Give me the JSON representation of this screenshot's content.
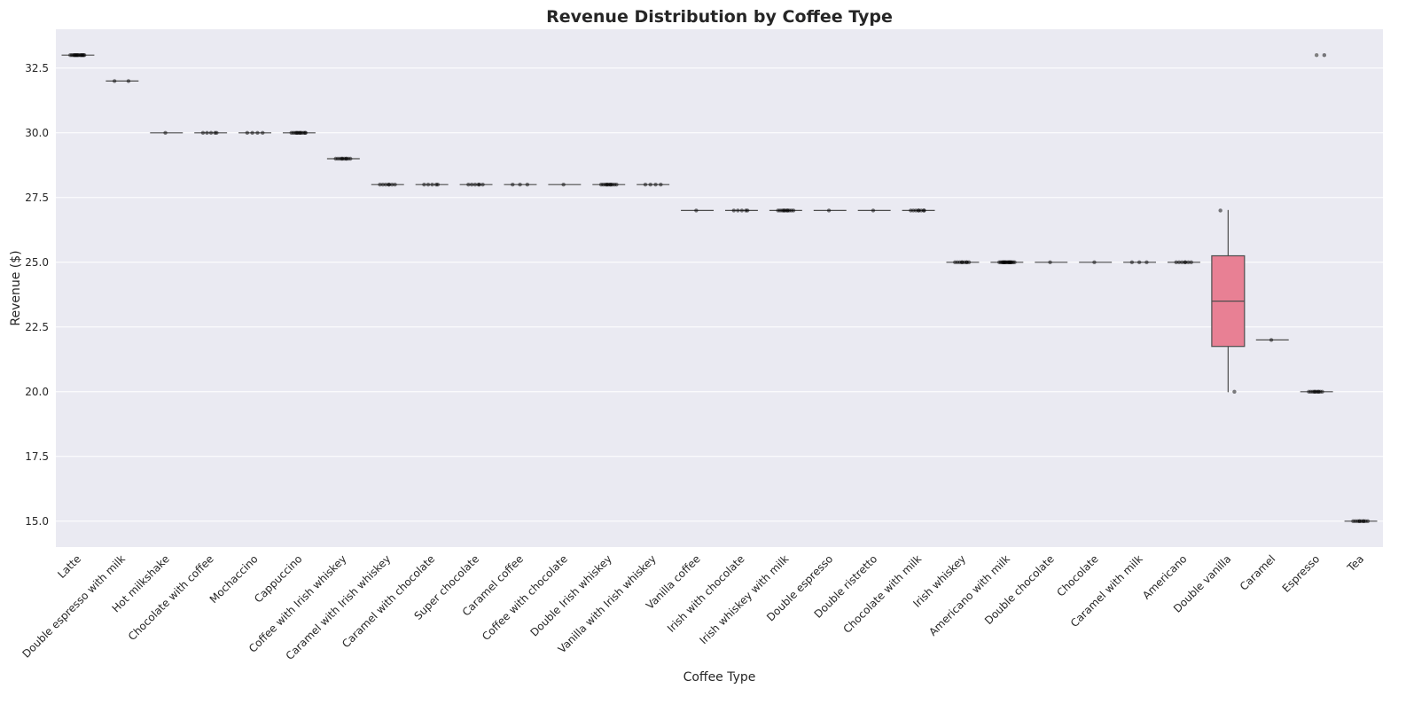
{
  "chart_data": {
    "type": "box",
    "title": "Revenue Distribution by Coffee Type",
    "xlabel": "Coffee Type",
    "ylabel": "Revenue ($)",
    "ylim": [
      14.0,
      34.0
    ],
    "yticks": [
      15.0,
      17.5,
      20.0,
      22.5,
      25.0,
      27.5,
      30.0,
      32.5
    ],
    "ytick_labels": [
      "15.0",
      "17.5",
      "20.0",
      "22.5",
      "25.0",
      "27.5",
      "30.0",
      "32.5"
    ],
    "grid": true,
    "colors": {
      "background": "#eaeaf2",
      "grid": "#ffffff",
      "box_fill": "#e88094",
      "box_edge": "#4d4d4d",
      "points": "#000000",
      "outlier": "#7f7f7f"
    },
    "categories": [
      "Latte",
      "Double espresso with milk",
      "Hot milkshake",
      "Chocolate with coffee",
      "Mochaccino",
      "Cappuccino",
      "Coffee with Irish whiskey",
      "Caramel with Irish whiskey",
      "Caramel with chocolate",
      "Super chocolate",
      "Caramel coffee",
      "Coffee with chocolate",
      "Double Irish whiskey",
      "Vanilla with Irish whiskey",
      "Vanilla coffee",
      "Irish with chocolate",
      "Irish whiskey with milk",
      "Double espresso",
      "Double ristretto",
      "Chocolate with milk",
      "Irish whiskey",
      "Americano with milk",
      "Double chocolate",
      "Chocolate",
      "Caramel with milk",
      "Americano",
      "Double vanilla",
      "Caramel",
      "Espresso",
      "Tea"
    ],
    "boxes": [
      {
        "min": 33.0,
        "q1": 33.0,
        "median": 33.0,
        "q3": 33.0,
        "max": 33.0,
        "outliers": []
      },
      {
        "min": 32.0,
        "q1": 32.0,
        "median": 32.0,
        "q3": 32.0,
        "max": 32.0,
        "outliers": []
      },
      {
        "min": 30.0,
        "q1": 30.0,
        "median": 30.0,
        "q3": 30.0,
        "max": 30.0,
        "outliers": []
      },
      {
        "min": 30.0,
        "q1": 30.0,
        "median": 30.0,
        "q3": 30.0,
        "max": 30.0,
        "outliers": []
      },
      {
        "min": 30.0,
        "q1": 30.0,
        "median": 30.0,
        "q3": 30.0,
        "max": 30.0,
        "outliers": []
      },
      {
        "min": 30.0,
        "q1": 30.0,
        "median": 30.0,
        "q3": 30.0,
        "max": 30.0,
        "outliers": []
      },
      {
        "min": 29.0,
        "q1": 29.0,
        "median": 29.0,
        "q3": 29.0,
        "max": 29.0,
        "outliers": []
      },
      {
        "min": 28.0,
        "q1": 28.0,
        "median": 28.0,
        "q3": 28.0,
        "max": 28.0,
        "outliers": []
      },
      {
        "min": 28.0,
        "q1": 28.0,
        "median": 28.0,
        "q3": 28.0,
        "max": 28.0,
        "outliers": []
      },
      {
        "min": 28.0,
        "q1": 28.0,
        "median": 28.0,
        "q3": 28.0,
        "max": 28.0,
        "outliers": []
      },
      {
        "min": 28.0,
        "q1": 28.0,
        "median": 28.0,
        "q3": 28.0,
        "max": 28.0,
        "outliers": []
      },
      {
        "min": 28.0,
        "q1": 28.0,
        "median": 28.0,
        "q3": 28.0,
        "max": 28.0,
        "outliers": []
      },
      {
        "min": 28.0,
        "q1": 28.0,
        "median": 28.0,
        "q3": 28.0,
        "max": 28.0,
        "outliers": []
      },
      {
        "min": 28.0,
        "q1": 28.0,
        "median": 28.0,
        "q3": 28.0,
        "max": 28.0,
        "outliers": []
      },
      {
        "min": 27.0,
        "q1": 27.0,
        "median": 27.0,
        "q3": 27.0,
        "max": 27.0,
        "outliers": []
      },
      {
        "min": 27.0,
        "q1": 27.0,
        "median": 27.0,
        "q3": 27.0,
        "max": 27.0,
        "outliers": []
      },
      {
        "min": 27.0,
        "q1": 27.0,
        "median": 27.0,
        "q3": 27.0,
        "max": 27.0,
        "outliers": []
      },
      {
        "min": 27.0,
        "q1": 27.0,
        "median": 27.0,
        "q3": 27.0,
        "max": 27.0,
        "outliers": []
      },
      {
        "min": 27.0,
        "q1": 27.0,
        "median": 27.0,
        "q3": 27.0,
        "max": 27.0,
        "outliers": []
      },
      {
        "min": 27.0,
        "q1": 27.0,
        "median": 27.0,
        "q3": 27.0,
        "max": 27.0,
        "outliers": []
      },
      {
        "min": 25.0,
        "q1": 25.0,
        "median": 25.0,
        "q3": 25.0,
        "max": 25.0,
        "outliers": []
      },
      {
        "min": 25.0,
        "q1": 25.0,
        "median": 25.0,
        "q3": 25.0,
        "max": 25.0,
        "outliers": []
      },
      {
        "min": 25.0,
        "q1": 25.0,
        "median": 25.0,
        "q3": 25.0,
        "max": 25.0,
        "outliers": []
      },
      {
        "min": 25.0,
        "q1": 25.0,
        "median": 25.0,
        "q3": 25.0,
        "max": 25.0,
        "outliers": []
      },
      {
        "min": 25.0,
        "q1": 25.0,
        "median": 25.0,
        "q3": 25.0,
        "max": 25.0,
        "outliers": []
      },
      {
        "min": 25.0,
        "q1": 25.0,
        "median": 25.0,
        "q3": 25.0,
        "max": 25.0,
        "outliers": []
      },
      {
        "min": 20.0,
        "q1": 21.75,
        "median": 23.5,
        "q3": 25.25,
        "max": 27.0,
        "outliers": []
      },
      {
        "min": 22.0,
        "q1": 22.0,
        "median": 22.0,
        "q3": 22.0,
        "max": 22.0,
        "outliers": []
      },
      {
        "min": 20.0,
        "q1": 20.0,
        "median": 20.0,
        "q3": 20.0,
        "max": 20.0,
        "outliers": [
          33.0
        ]
      },
      {
        "min": 15.0,
        "q1": 15.0,
        "median": 15.0,
        "q3": 15.0,
        "max": 15.0,
        "outliers": []
      }
    ],
    "points": [
      [
        33.0,
        33.0,
        33.0,
        33.0,
        33.0,
        33.0,
        33.0,
        33.0,
        33.0,
        33.0,
        33.0,
        33.0,
        33.0,
        33.0,
        33.0
      ],
      [
        32.0,
        32.0
      ],
      [
        30.0
      ],
      [
        30.0,
        30.0,
        30.0,
        30.0,
        30.0
      ],
      [
        30.0,
        30.0,
        30.0,
        30.0
      ],
      [
        30.0,
        30.0,
        30.0,
        30.0,
        30.0,
        30.0,
        30.0,
        30.0,
        30.0,
        30.0,
        30.0,
        30.0
      ],
      [
        29.0,
        29.0,
        29.0,
        29.0,
        29.0,
        29.0,
        29.0,
        29.0,
        29.0,
        29.0
      ],
      [
        28.0,
        28.0,
        28.0,
        28.0,
        28.0,
        28.0,
        28.0
      ],
      [
        28.0,
        28.0,
        28.0,
        28.0,
        28.0
      ],
      [
        28.0,
        28.0,
        28.0,
        28.0,
        28.0,
        28.0
      ],
      [
        28.0,
        28.0,
        28.0
      ],
      [
        28.0
      ],
      [
        28.0,
        28.0,
        28.0,
        28.0,
        28.0,
        28.0,
        28.0,
        28.0,
        28.0,
        28.0,
        28.0
      ],
      [
        28.0,
        28.0,
        28.0,
        28.0
      ],
      [
        27.0
      ],
      [
        27.0,
        27.0,
        27.0,
        27.0,
        27.0
      ],
      [
        27.0,
        27.0,
        27.0,
        27.0,
        27.0,
        27.0,
        27.0,
        27.0,
        27.0,
        27.0,
        27.0
      ],
      [
        27.0
      ],
      [
        27.0
      ],
      [
        27.0,
        27.0,
        27.0,
        27.0,
        27.0,
        27.0,
        27.0,
        27.0
      ],
      [
        25.0,
        25.0,
        25.0,
        25.0,
        25.0,
        25.0,
        25.0,
        25.0,
        25.0
      ],
      [
        25.0,
        25.0,
        25.0,
        25.0,
        25.0,
        25.0,
        25.0,
        25.0,
        25.0,
        25.0,
        25.0,
        25.0,
        25.0,
        25.0,
        25.0,
        25.0,
        25.0,
        25.0
      ],
      [
        25.0
      ],
      [
        25.0
      ],
      [
        25.0,
        25.0,
        25.0
      ],
      [
        25.0,
        25.0,
        25.0,
        25.0,
        25.0,
        25.0,
        25.0
      ],
      [
        27.0,
        20.0
      ],
      [
        22.0
      ],
      [
        20.0,
        20.0,
        20.0,
        20.0,
        20.0,
        20.0,
        20.0,
        20.0,
        20.0,
        20.0,
        33.0
      ],
      [
        15.0,
        15.0,
        15.0,
        15.0,
        15.0,
        15.0,
        15.0,
        15.0,
        15.0,
        15.0
      ]
    ]
  }
}
